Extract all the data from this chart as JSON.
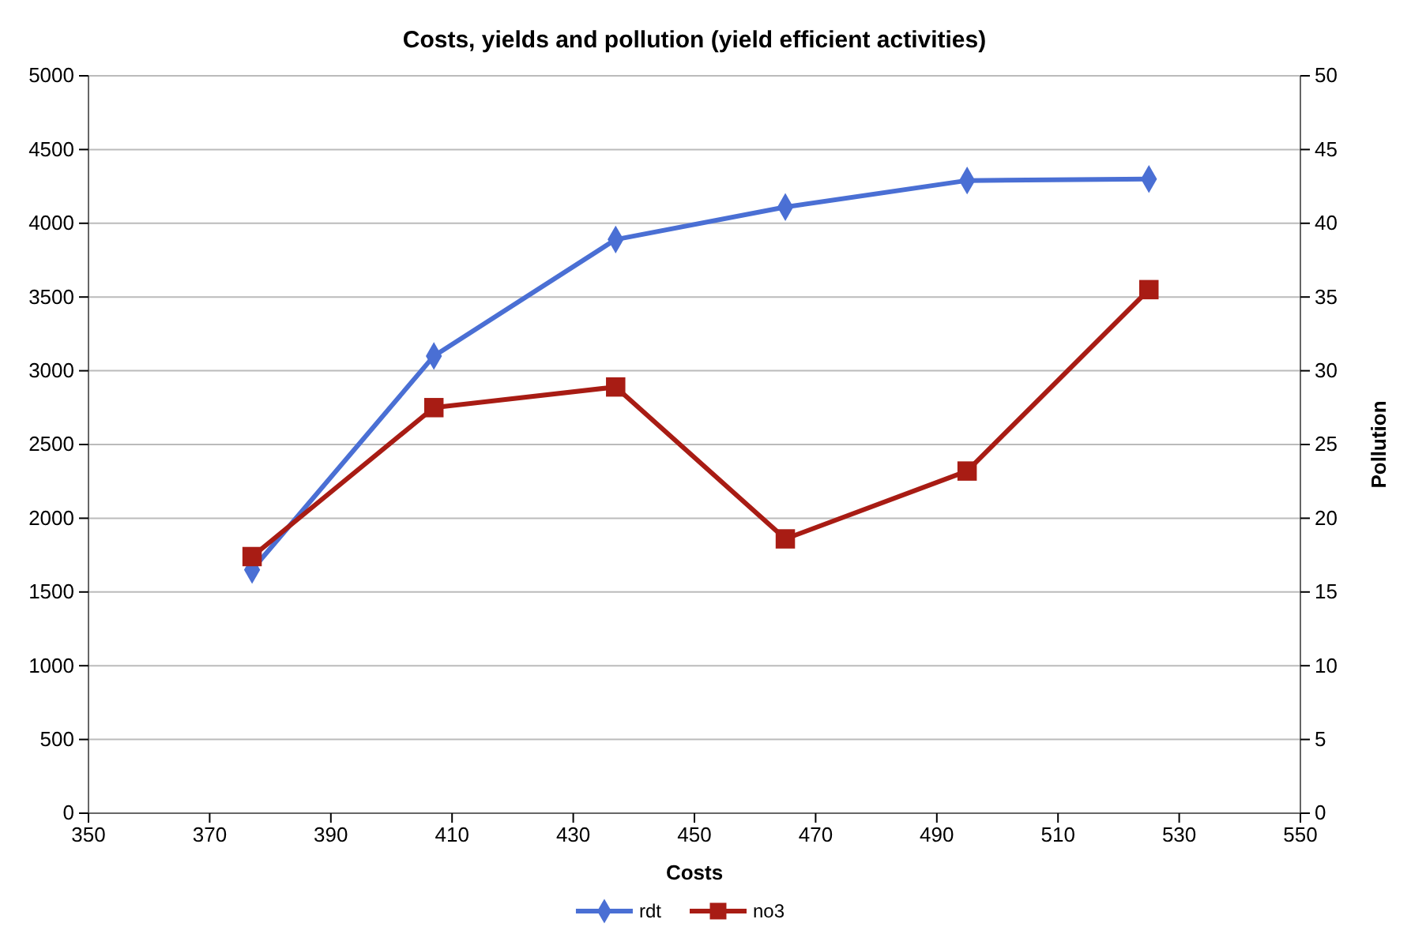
{
  "chart_data": {
    "type": "line",
    "title": "Costs, yields and pollution (yield efficient activities)",
    "xlabel": "Costs",
    "y2label": "Pollution",
    "x": [
      377,
      407,
      437,
      465,
      495,
      525
    ],
    "series": [
      {
        "name": "rdt",
        "color": "#4a6fd4",
        "values": [
          1650,
          3100,
          3890,
          4110,
          4290,
          4300
        ],
        "marker": "diamond"
      },
      {
        "name": "no3",
        "color": "#a81c14",
        "values": [
          17.4,
          27.5,
          28.9,
          18.6,
          23.2,
          35.5
        ],
        "marker": "square",
        "axis": "y2"
      }
    ],
    "xlim": [
      350,
      550
    ],
    "xticks": [
      350,
      370,
      390,
      410,
      430,
      450,
      470,
      490,
      510,
      530,
      550
    ],
    "ylim": [
      0,
      5000
    ],
    "yticks": [
      0,
      500,
      1000,
      1500,
      2000,
      2500,
      3000,
      3500,
      4000,
      4500,
      5000
    ],
    "y2lim": [
      0,
      50
    ],
    "y2ticks": [
      0,
      5,
      10,
      15,
      20,
      25,
      30,
      35,
      40,
      45,
      50
    ],
    "grid": "y",
    "legend": "bottom"
  }
}
